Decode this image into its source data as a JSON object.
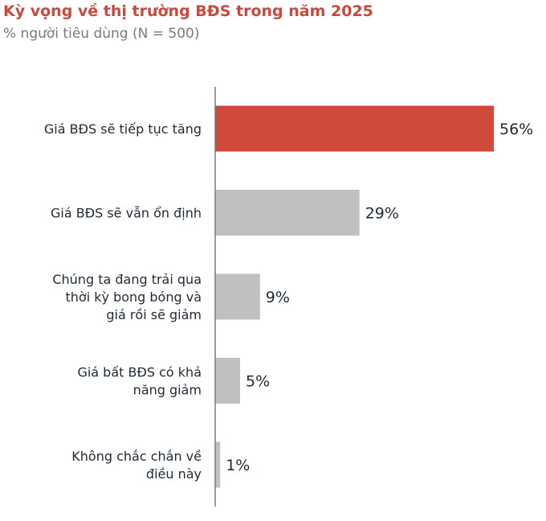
{
  "title": "Kỳ vọng về thị trường BĐS trong năm 2025",
  "subtitle": "% người tiêu dùng (N = 500)",
  "colors": {
    "title": "#c94a3c",
    "subtitle": "#7a7a7a",
    "highlight_bar": "#cf4a3a",
    "other_bar": "#c0c0c0",
    "axis": "#7a7a7a",
    "label_text": "#1e2a38",
    "value_text": "#1e2a38"
  },
  "chart_data": {
    "type": "bar",
    "orientation": "horizontal",
    "categories": [
      [
        "Giá BĐS sẽ tiếp tục tăng"
      ],
      [
        "Giá BĐS sẽ vẫn ổn định"
      ],
      [
        "Chúng ta đang trải qua",
        "thời kỳ bong bóng và",
        "giá rồi sẽ giảm"
      ],
      [
        "Giá bất BĐS có khả",
        "năng giảm"
      ],
      [
        "Không chắc chắn về",
        "điều này"
      ]
    ],
    "values": [
      56,
      29,
      9,
      5,
      1
    ],
    "value_labels": [
      "56%",
      "29%",
      "9%",
      "5%",
      "1%"
    ],
    "highlight_index": 0,
    "xlim": [
      0,
      56
    ],
    "grid": false,
    "legend": "none"
  }
}
